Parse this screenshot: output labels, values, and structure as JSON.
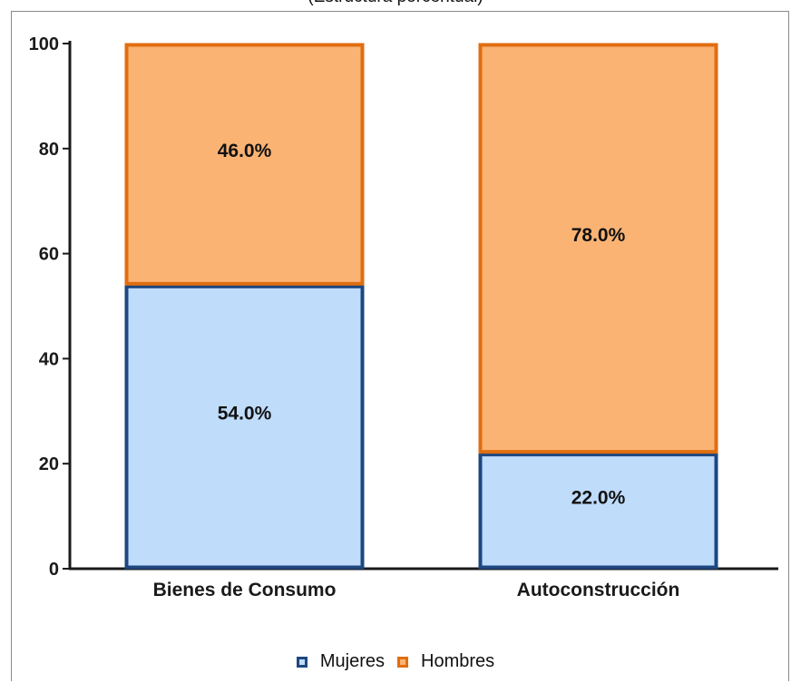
{
  "subtitle": "(Estructura porcentual)",
  "colors": {
    "mujeres_fill": "#bfdcfb",
    "mujeres_stroke": "#1d4780",
    "hombres_fill": "#fbb374",
    "hombres_stroke": "#e06e10",
    "axis": "#1a1a1a"
  },
  "chart_data": {
    "type": "bar",
    "stacked": true,
    "categories": [
      "Bienes de Consumo",
      "Autoconstrucción"
    ],
    "series": [
      {
        "name": "Mujeres",
        "values": [
          54.0,
          22.0
        ],
        "labels": [
          "54.0%",
          "22.0%"
        ]
      },
      {
        "name": "Hombres",
        "values": [
          46.0,
          78.0
        ],
        "labels": [
          "46.0%",
          "78.0%"
        ]
      }
    ],
    "ylim": [
      0,
      100
    ],
    "yticks": [
      0,
      20,
      40,
      60,
      80,
      100
    ],
    "grid": false,
    "legend_position": "bottom-center"
  }
}
